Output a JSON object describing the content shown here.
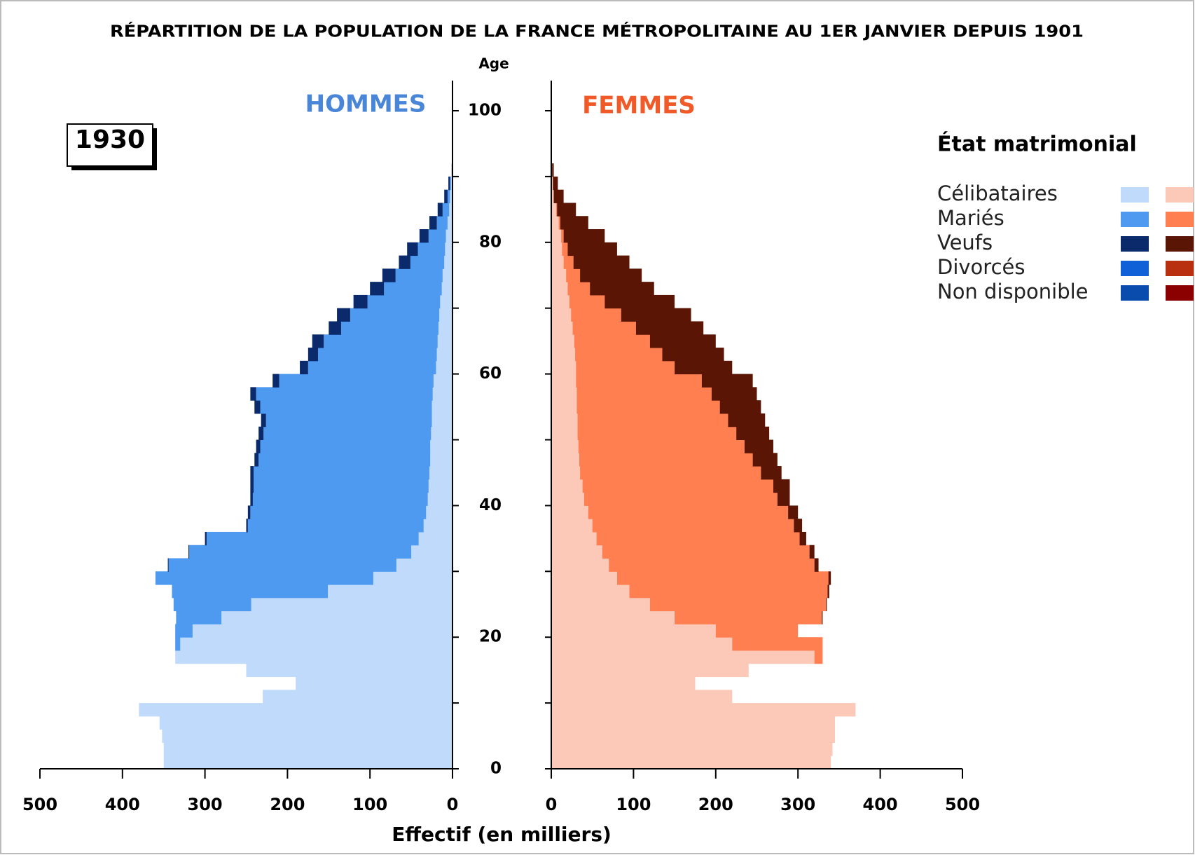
{
  "chart_data": {
    "type": "population_pyramid",
    "title": "RÉPARTITION DE LA POPULATION DE LA FRANCE MÉTROPOLITAINE AU 1ER JANVIER DEPUIS 1901",
    "year_label": "1930",
    "age_label": "Age",
    "xlabel": "Effectif  (en milliers)",
    "legend_title": "État matrimonial",
    "legend": [
      {
        "name": "Célibataires",
        "colors": [
          "#c0dafc",
          "#fcc8b8"
        ]
      },
      {
        "name": "Mariés",
        "colors": [
          "#4d9af0",
          "#ff7f50"
        ]
      },
      {
        "name": "Veufs",
        "colors": [
          "#0a2a6b",
          "#5a1505"
        ]
      },
      {
        "name": "Divorcés",
        "colors": [
          "#1060d8",
          "#b83010"
        ]
      },
      {
        "name": "Non disponible",
        "colors": [
          "#0a4cad",
          "#8b0000"
        ]
      }
    ],
    "ages": [
      0,
      2,
      4,
      6,
      8,
      10,
      12,
      14,
      16,
      18,
      20,
      22,
      24,
      26,
      28,
      30,
      32,
      34,
      36,
      38,
      40,
      42,
      44,
      46,
      48,
      50,
      52,
      54,
      56,
      58,
      60,
      62,
      64,
      66,
      68,
      70,
      72,
      74,
      76,
      78,
      80,
      82,
      84,
      86,
      88,
      90
    ],
    "ylim": [
      0,
      102
    ],
    "yticks": [
      0,
      20,
      40,
      60,
      80,
      100
    ],
    "minor_yticks": [
      10,
      30,
      50,
      70,
      90
    ],
    "xlim": [
      0,
      500
    ],
    "xticks": [
      0,
      100,
      200,
      300,
      400,
      500
    ],
    "men": {
      "label": "HOMMES",
      "color": "#4a86d8",
      "series": [
        {
          "legend": 0,
          "values": [
            350,
            350,
            352,
            355,
            380,
            230,
            190,
            250,
            336,
            330,
            315,
            280,
            244,
            151,
            96,
            68,
            50,
            41,
            35,
            32,
            30,
            29,
            28,
            27,
            27,
            26,
            25,
            25,
            24,
            23,
            20,
            19,
            18,
            17,
            16,
            15,
            13,
            12,
            10,
            9,
            8,
            6,
            4,
            3,
            2,
            0.5
          ]
        },
        {
          "legend": 1,
          "values": [
            0,
            0,
            0,
            0,
            0,
            0,
            0,
            0,
            0,
            6,
            21,
            55,
            94,
            189,
            264,
            276,
            269,
            257,
            213,
            213,
            212,
            212,
            213,
            208,
            206,
            203,
            201,
            208,
            214,
            187,
            155,
            144,
            138,
            118,
            108,
            88,
            70,
            57,
            41,
            33,
            21,
            13,
            8,
            3,
            1,
            0
          ]
        },
        {
          "legend": 2,
          "values": [
            0,
            0,
            0,
            0,
            0,
            0,
            0,
            0,
            0,
            0,
            0,
            0,
            0,
            0,
            0,
            1,
            1,
            2,
            2,
            3,
            3,
            4,
            4,
            5,
            5,
            6,
            6,
            7,
            7,
            8,
            10,
            12,
            14,
            15,
            16,
            17,
            17,
            16,
            14,
            13,
            11,
            9,
            6,
            4,
            2,
            0.5
          ]
        }
      ]
    },
    "women": {
      "label": "FEMMES",
      "color": "#f05a28",
      "series": [
        {
          "legend": 0,
          "values": [
            340,
            342,
            345,
            345,
            370,
            220,
            175,
            240,
            320,
            220,
            200,
            150,
            120,
            95,
            80,
            70,
            62,
            55,
            50,
            45,
            40,
            38,
            35,
            34,
            33,
            32,
            32,
            31,
            31,
            30,
            30,
            29,
            28,
            26,
            24,
            22,
            20,
            18,
            15,
            13,
            12,
            9,
            6,
            3,
            2,
            1
          ]
        },
        {
          "legend": 1,
          "values": [
            0,
            0,
            0,
            0,
            0,
            0,
            0,
            0,
            10,
            110,
            100,
            179,
            214,
            241,
            257,
            250,
            252,
            247,
            245,
            243,
            235,
            232,
            220,
            211,
            202,
            193,
            183,
            174,
            164,
            153,
            120,
            106,
            92,
            77,
            61,
            43,
            27,
            17,
            12,
            7,
            3,
            2,
            1,
            0,
            0,
            0
          ]
        },
        {
          "legend": 2,
          "values": [
            0,
            0,
            0,
            0,
            0,
            0,
            0,
            0,
            0,
            0,
            0,
            1,
            1,
            2,
            3,
            5,
            6,
            8,
            10,
            12,
            15,
            20,
            25,
            30,
            35,
            40,
            45,
            50,
            55,
            62,
            70,
            75,
            80,
            82,
            85,
            85,
            78,
            75,
            68,
            60,
            50,
            34,
            23,
            12,
            6,
            2
          ]
        }
      ]
    }
  }
}
